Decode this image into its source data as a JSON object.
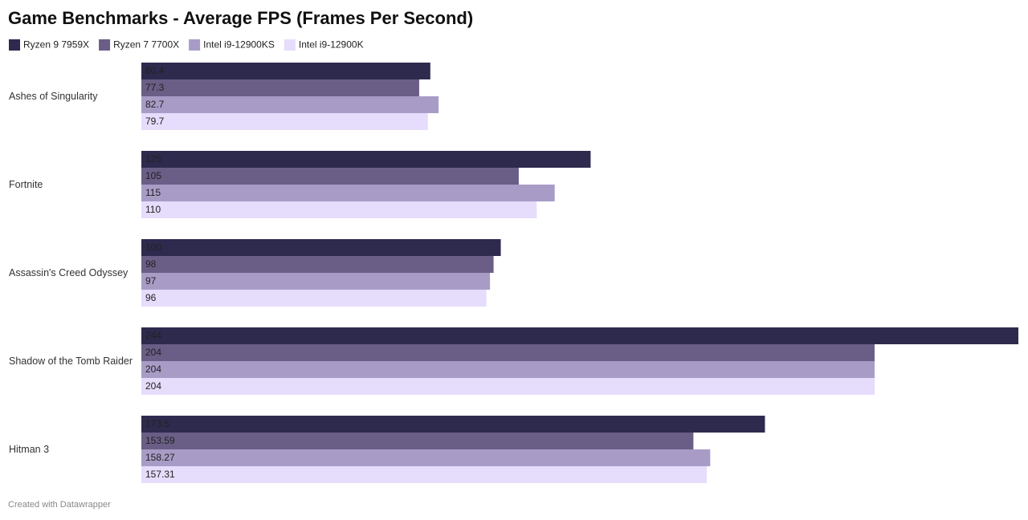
{
  "chart_data": {
    "type": "bar",
    "orientation": "horizontal",
    "title": "Game Benchmarks - Average FPS (Frames Per Second)",
    "categories": [
      "Ashes of Singularity",
      "Fortnite",
      "Assassin's Creed Odyssey",
      "Shadow of the Tomb Raider",
      "Hitman 3"
    ],
    "series": [
      {
        "name": "Ryzen 9 7959X",
        "color": "#2e2a4e",
        "values": [
          80.4,
          125,
          100,
          244,
          173.5
        ]
      },
      {
        "name": "Ryzen 7 7700X",
        "color": "#6a5e86",
        "values": [
          77.3,
          105,
          98,
          204,
          153.59
        ]
      },
      {
        "name": "Intel i9-12900KS",
        "color": "#a89cc7",
        "values": [
          82.7,
          115,
          97,
          204,
          158.27
        ]
      },
      {
        "name": "Intel i9-12900K",
        "color": "#e6dcfb",
        "values": [
          79.7,
          110,
          96,
          204,
          157.31
        ]
      }
    ],
    "legend": "top-left",
    "note": "Created with Datawrapper"
  }
}
